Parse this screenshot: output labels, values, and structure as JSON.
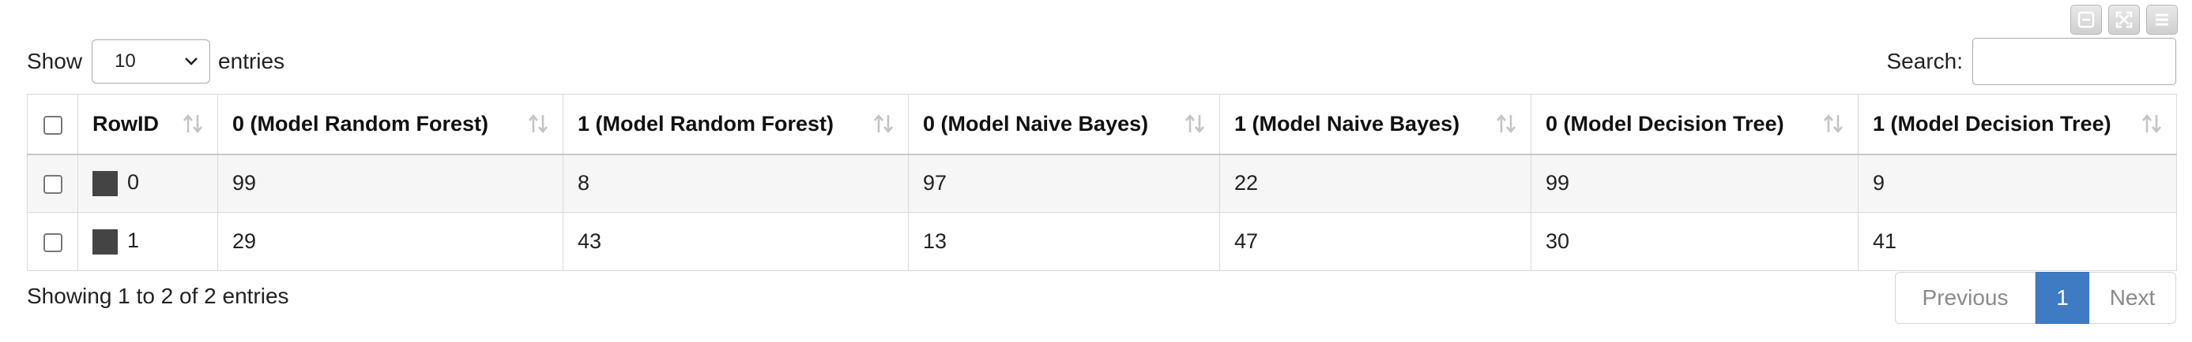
{
  "length": {
    "show_label": "Show",
    "selected": "10",
    "entries_label": "entries"
  },
  "search": {
    "label": "Search:",
    "value": "",
    "placeholder": ""
  },
  "columns": [
    "RowID",
    "0 (Model Random Forest)",
    "1 (Model Random Forest)",
    "0 (Model Naive Bayes)",
    "1 (Model Naive Bayes)",
    "0 (Model Decision Tree)",
    "1 (Model Decision Tree)"
  ],
  "rows": [
    {
      "rowid": "0",
      "swatch_color": "#444444",
      "cells": [
        "99",
        "8",
        "97",
        "22",
        "99",
        "9"
      ]
    },
    {
      "rowid": "1",
      "swatch_color": "#444444",
      "cells": [
        "29",
        "43",
        "13",
        "47",
        "30",
        "41"
      ]
    }
  ],
  "info": "Showing 1 to 2 of 2 entries",
  "pagination": {
    "previous": "Previous",
    "current": "1",
    "next": "Next"
  },
  "colors": {
    "accent": "#3e7bc4",
    "stripe": "#f6f6f6"
  },
  "icons": {
    "window_controls": [
      "minimize-icon",
      "expand-icon",
      "menu-icon"
    ],
    "sort": "sort-icon"
  }
}
